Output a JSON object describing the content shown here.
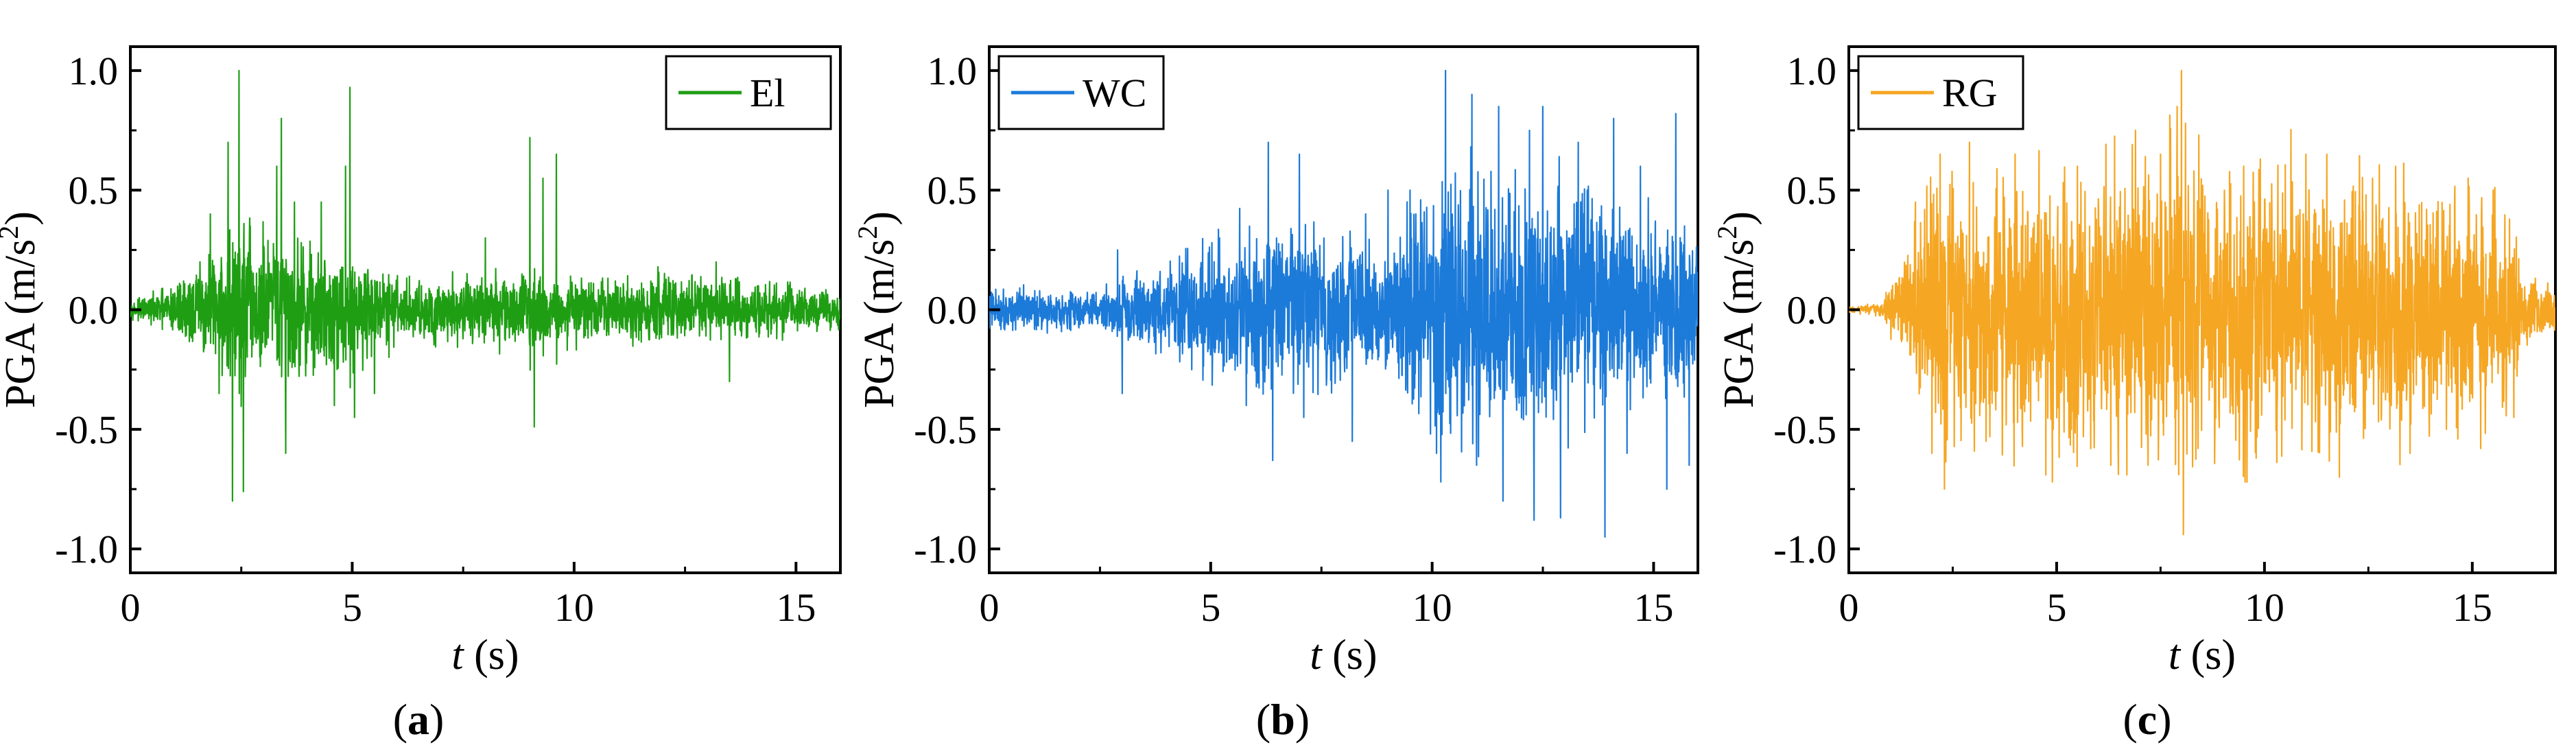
{
  "chart_data": [
    {
      "type": "line",
      "panel_label": "a",
      "xlabel_var": "t",
      "xlabel_unit": "(s)",
      "ylabel_base": "PGA (m/s",
      "ylabel_sup": "2",
      "ylabel_close": ")",
      "xlim": [
        0,
        16
      ],
      "ylim": [
        -1.1,
        1.1
      ],
      "xticks": [
        0,
        5,
        10,
        15
      ],
      "xtick_labels": [
        "0",
        "5",
        "10",
        "15"
      ],
      "yticks": [
        1.0,
        0.5,
        0.0,
        -0.5,
        -1.0
      ],
      "ytick_labels": [
        "1.0",
        "0.5",
        "0.0",
        "-0.5",
        "-1.0"
      ],
      "legend_position": "top-right",
      "series": [
        {
          "name": "El",
          "color": "#1f9e14",
          "duration": 16,
          "envelope": [
            [
              0,
              0.02
            ],
            [
              0.5,
              0.04
            ],
            [
              1.5,
              0.12
            ],
            [
              2.5,
              0.25
            ],
            [
              3.5,
              0.2
            ],
            [
              5,
              0.15
            ],
            [
              6,
              0.1
            ],
            [
              8,
              0.09
            ],
            [
              9,
              0.12
            ],
            [
              10,
              0.09
            ],
            [
              12,
              0.1
            ],
            [
              14,
              0.08
            ],
            [
              16,
              0.06
            ]
          ],
          "spikes": [
            [
              1.8,
              0.4
            ],
            [
              2.0,
              -0.35
            ],
            [
              2.2,
              0.7
            ],
            [
              2.3,
              -0.8
            ],
            [
              2.45,
              1.0
            ],
            [
              2.55,
              -0.76
            ],
            [
              2.7,
              0.35
            ],
            [
              3.3,
              0.6
            ],
            [
              3.4,
              0.8
            ],
            [
              3.5,
              -0.6
            ],
            [
              3.7,
              0.45
            ],
            [
              4.3,
              0.45
            ],
            [
              4.6,
              -0.4
            ],
            [
              4.85,
              0.6
            ],
            [
              4.95,
              0.93
            ],
            [
              5.05,
              -0.45
            ],
            [
              5.5,
              -0.35
            ],
            [
              8.0,
              0.3
            ],
            [
              9.0,
              0.72
            ],
            [
              9.1,
              -0.49
            ],
            [
              9.3,
              0.55
            ],
            [
              9.6,
              0.65
            ],
            [
              13.5,
              -0.3
            ],
            [
              13.2,
              0.2
            ]
          ]
        }
      ]
    },
    {
      "type": "line",
      "panel_label": "b",
      "xlabel_var": "t",
      "xlabel_unit": "(s)",
      "ylabel_base": "PGA (m/s",
      "ylabel_sup": "2",
      "ylabel_close": ")",
      "xlim": [
        0,
        16
      ],
      "ylim": [
        -1.1,
        1.1
      ],
      "xticks": [
        0,
        5,
        10,
        15
      ],
      "xtick_labels": [
        "0",
        "5",
        "10",
        "15"
      ],
      "yticks": [
        1.0,
        0.5,
        0.0,
        -0.5,
        -1.0
      ],
      "ytick_labels": [
        "1.0",
        "0.5",
        "0.0",
        "-0.5",
        "-1.0"
      ],
      "legend_position": "top-left",
      "series": [
        {
          "name": "WC",
          "color": "#1c7ad9",
          "duration": 16,
          "envelope": [
            [
              0,
              0.06
            ],
            [
              2.5,
              0.05
            ],
            [
              3,
              0.1
            ],
            [
              4,
              0.12
            ],
            [
              5,
              0.2
            ],
            [
              6,
              0.25
            ],
            [
              7,
              0.25
            ],
            [
              9,
              0.15
            ],
            [
              10,
              0.4
            ],
            [
              11,
              0.35
            ],
            [
              13,
              0.35
            ],
            [
              14,
              0.3
            ],
            [
              15,
              0.25
            ],
            [
              16,
              0.25
            ]
          ],
          "spikes": [
            [
              2.9,
              0.25
            ],
            [
              3.0,
              -0.35
            ],
            [
              5.2,
              0.3
            ],
            [
              5.8,
              -0.4
            ],
            [
              6.3,
              0.7
            ],
            [
              6.4,
              -0.63
            ],
            [
              7.0,
              0.65
            ],
            [
              7.1,
              -0.45
            ],
            [
              8.2,
              -0.55
            ],
            [
              8.5,
              0.4
            ],
            [
              9.0,
              0.5
            ],
            [
              9.5,
              0.5
            ],
            [
              10.1,
              -0.6
            ],
            [
              10.2,
              -0.72
            ],
            [
              10.3,
              1.0
            ],
            [
              10.9,
              0.9
            ],
            [
              11.0,
              -0.65
            ],
            [
              11.5,
              0.85
            ],
            [
              11.6,
              -0.8
            ],
            [
              12.2,
              0.75
            ],
            [
              12.3,
              -0.88
            ],
            [
              12.5,
              0.85
            ],
            [
              12.9,
              -0.87
            ],
            [
              13.3,
              0.7
            ],
            [
              13.5,
              0.5
            ],
            [
              13.9,
              -0.95
            ],
            [
              14.1,
              0.8
            ],
            [
              14.4,
              -0.6
            ],
            [
              14.7,
              0.6
            ],
            [
              15.3,
              -0.75
            ],
            [
              15.5,
              0.82
            ],
            [
              15.7,
              0.35
            ],
            [
              15.8,
              -0.65
            ]
          ]
        }
      ]
    },
    {
      "type": "line",
      "panel_label": "c",
      "xlabel_var": "t",
      "xlabel_unit": "(s)",
      "ylabel_base": "PGA (m/s",
      "ylabel_sup": "2",
      "ylabel_close": ")",
      "xlim": [
        0,
        17
      ],
      "ylim": [
        -1.1,
        1.1
      ],
      "xticks": [
        0,
        5,
        10,
        15
      ],
      "xtick_labels": [
        "0",
        "5",
        "10",
        "15"
      ],
      "yticks": [
        1.0,
        0.5,
        0.0,
        -0.5,
        -1.0
      ],
      "ytick_labels": [
        "1.0",
        "0.5",
        "0.0",
        "-0.5",
        "-1.0"
      ],
      "legend_position": "top-left",
      "series": [
        {
          "name": "RG",
          "color": "#f5a623",
          "duration": 17,
          "envelope": [
            [
              0,
              0.01
            ],
            [
              0.8,
              0.02
            ],
            [
              1.2,
              0.12
            ],
            [
              2,
              0.35
            ],
            [
              4,
              0.4
            ],
            [
              8,
              0.45
            ],
            [
              12,
              0.4
            ],
            [
              14,
              0.35
            ],
            [
              16,
              0.3
            ],
            [
              16.2,
              0.1
            ],
            [
              17,
              0.08
            ]
          ],
          "spikes": [
            [
              1.6,
              0.45
            ],
            [
              2.0,
              -0.6
            ],
            [
              2.2,
              0.65
            ],
            [
              2.3,
              -0.75
            ],
            [
              2.9,
              0.7
            ],
            [
              3.3,
              -0.55
            ],
            [
              4.0,
              0.65
            ],
            [
              4.9,
              -0.72
            ],
            [
              5.5,
              0.6
            ],
            [
              6.3,
              -0.65
            ],
            [
              6.9,
              0.75
            ],
            [
              7.2,
              -0.65
            ],
            [
              7.5,
              0.65
            ],
            [
              7.9,
              0.85
            ],
            [
              8.0,
              1.0
            ],
            [
              8.05,
              -0.94
            ],
            [
              8.1,
              0.78
            ],
            [
              8.4,
              -0.58
            ],
            [
              9.5,
              0.6
            ],
            [
              9.8,
              -0.62
            ],
            [
              11.0,
              0.65
            ],
            [
              11.5,
              0.65
            ],
            [
              11.8,
              -0.7
            ],
            [
              12.6,
              0.55
            ],
            [
              13.5,
              -0.6
            ],
            [
              14.9,
              0.55
            ],
            [
              15.2,
              -0.58
            ],
            [
              15.5,
              0.5
            ],
            [
              16.0,
              -0.45
            ]
          ]
        }
      ]
    }
  ]
}
